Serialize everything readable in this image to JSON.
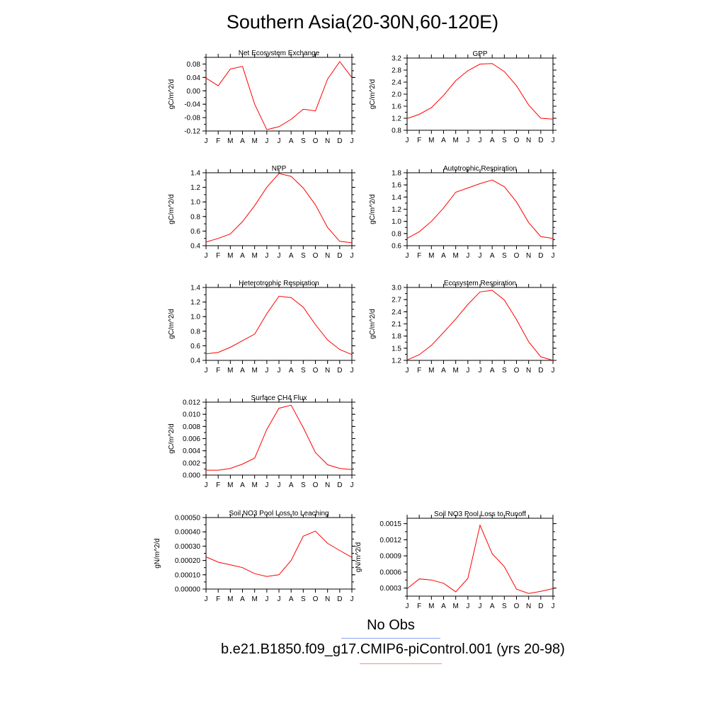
{
  "page_title": "Southern Asia(20-30N,60-120E)",
  "legend": {
    "obs_label": "No Obs",
    "obs_color": "#8fa0f0",
    "case_label": "b.e21.B1850.f09_g17.CMIP6-piControl.001 (yrs 20-98)",
    "case_color": "#f08f8f"
  },
  "series_color": "#ff0000",
  "chart_data": [
    {
      "type": "line",
      "title": "Net Ecosystem Exchange",
      "ylabel": "gC/m^2/d",
      "categories": [
        "J",
        "F",
        "M",
        "A",
        "M",
        "J",
        "J",
        "A",
        "S",
        "O",
        "N",
        "D",
        "J"
      ],
      "values": [
        0.038,
        0.015,
        0.065,
        0.073,
        -0.04,
        -0.116,
        -0.107,
        -0.085,
        -0.055,
        -0.06,
        0.035,
        0.087,
        0.04
      ],
      "ylim": [
        -0.12,
        0.1
      ],
      "yticks": [
        "0.08",
        "0.04",
        "0.00",
        "-0.04",
        "-0.08",
        "-0.12"
      ]
    },
    {
      "type": "line",
      "title": "GPP",
      "ylabel": "gC/m^2/d",
      "categories": [
        "J",
        "F",
        "M",
        "A",
        "M",
        "J",
        "J",
        "A",
        "S",
        "O",
        "N",
        "D",
        "J"
      ],
      "values": [
        1.19,
        1.33,
        1.55,
        1.96,
        2.45,
        2.78,
        3.0,
        3.02,
        2.75,
        2.28,
        1.64,
        1.2,
        1.17
      ],
      "ylim": [
        0.8,
        3.2
      ],
      "yticks": [
        "3.2",
        "2.8",
        "2.4",
        "2.0",
        "1.6",
        "1.2",
        "0.8"
      ]
    },
    {
      "type": "line",
      "title": "NPP",
      "ylabel": "gC/m^2/d",
      "categories": [
        "J",
        "F",
        "M",
        "A",
        "M",
        "J",
        "J",
        "A",
        "S",
        "O",
        "N",
        "D",
        "J"
      ],
      "values": [
        0.45,
        0.5,
        0.56,
        0.73,
        0.95,
        1.2,
        1.39,
        1.35,
        1.19,
        0.96,
        0.65,
        0.46,
        0.44
      ],
      "ylim": [
        0.4,
        1.4
      ],
      "yticks": [
        "1.4",
        "1.2",
        "1.0",
        "0.8",
        "0.6",
        "0.4"
      ]
    },
    {
      "type": "line",
      "title": "Autotrophic Respiration",
      "ylabel": "gC/m^2/d",
      "categories": [
        "J",
        "F",
        "M",
        "A",
        "M",
        "J",
        "J",
        "A",
        "S",
        "O",
        "N",
        "D",
        "J"
      ],
      "values": [
        0.72,
        0.83,
        1.0,
        1.22,
        1.48,
        1.55,
        1.62,
        1.68,
        1.57,
        1.32,
        0.98,
        0.75,
        0.72
      ],
      "ylim": [
        0.6,
        1.8
      ],
      "yticks": [
        "1.8",
        "1.6",
        "1.4",
        "1.2",
        "1.0",
        "0.8",
        "0.6"
      ]
    },
    {
      "type": "line",
      "title": "Heterotrophic Respiration",
      "ylabel": "gC/m^2/d",
      "categories": [
        "J",
        "F",
        "M",
        "A",
        "M",
        "J",
        "J",
        "A",
        "S",
        "O",
        "N",
        "D",
        "J"
      ],
      "values": [
        0.49,
        0.51,
        0.58,
        0.67,
        0.76,
        1.04,
        1.28,
        1.26,
        1.13,
        0.89,
        0.68,
        0.55,
        0.48
      ],
      "ylim": [
        0.4,
        1.4
      ],
      "yticks": [
        "1.4",
        "1.2",
        "1.0",
        "0.8",
        "0.6",
        "0.4"
      ]
    },
    {
      "type": "line",
      "title": "Ecosystem Respiration",
      "ylabel": "gC/m^2/d",
      "categories": [
        "J",
        "F",
        "M",
        "A",
        "M",
        "J",
        "J",
        "A",
        "S",
        "O",
        "N",
        "D",
        "J"
      ],
      "values": [
        1.21,
        1.34,
        1.57,
        1.89,
        2.22,
        2.58,
        2.89,
        2.93,
        2.69,
        2.21,
        1.66,
        1.29,
        1.2
      ],
      "ylim": [
        1.2,
        3.0
      ],
      "yticks": [
        "3.0",
        "2.7",
        "2.4",
        "2.1",
        "1.8",
        "1.5",
        "1.2"
      ]
    },
    {
      "type": "line",
      "title": "Surface CH4 Flux",
      "ylabel": "gC/m^2/d",
      "categories": [
        "J",
        "F",
        "M",
        "A",
        "M",
        "J",
        "J",
        "A",
        "S",
        "O",
        "N",
        "D",
        "J"
      ],
      "values": [
        0.0008,
        0.0008,
        0.0011,
        0.0018,
        0.0028,
        0.0075,
        0.011,
        0.0115,
        0.0078,
        0.0037,
        0.0017,
        0.0011,
        0.0009
      ],
      "ylim": [
        0.0,
        0.012
      ],
      "yticks": [
        "0.012",
        "0.010",
        "0.008",
        "0.006",
        "0.004",
        "0.002",
        "0.000"
      ]
    },
    {
      "type": "line",
      "title": "Soil NO3 Pool Loss to Leaching",
      "ylabel": "gN/m^2/d",
      "categories": [
        "J",
        "F",
        "M",
        "A",
        "M",
        "J",
        "J",
        "A",
        "S",
        "O",
        "N",
        "D",
        "J"
      ],
      "values": [
        0.000225,
        0.000188,
        0.00017,
        0.00015,
        0.000108,
        8.8e-05,
        0.0001,
        0.0002,
        0.00037,
        0.000405,
        0.00032,
        0.00027,
        0.000222
      ],
      "ylim": [
        0.0,
        0.0005
      ],
      "yticks": [
        "0.00050",
        "0.00040",
        "0.00030",
        "0.00020",
        "0.00010",
        "0.00000"
      ]
    },
    {
      "type": "line",
      "title": "Soil NO3 Pool Loss to Runoff",
      "ylabel": "gN/m^2/d",
      "categories": [
        "J",
        "F",
        "M",
        "A",
        "M",
        "J",
        "J",
        "A",
        "S",
        "O",
        "N",
        "D",
        "J"
      ],
      "values": [
        0.00029,
        0.00047,
        0.00045,
        0.00039,
        0.00023,
        0.00048,
        0.00147,
        0.00094,
        0.0007,
        0.00028,
        0.0002,
        0.00024,
        0.00029
      ],
      "ylim": [
        0.00015,
        0.0016
      ],
      "ytick_values": [
        0.0015,
        0.0012,
        0.0009,
        0.0006,
        0.0003
      ],
      "yticks": [
        "0.0015",
        "0.0012",
        "0.0009",
        "0.0006",
        "0.0003"
      ]
    }
  ]
}
